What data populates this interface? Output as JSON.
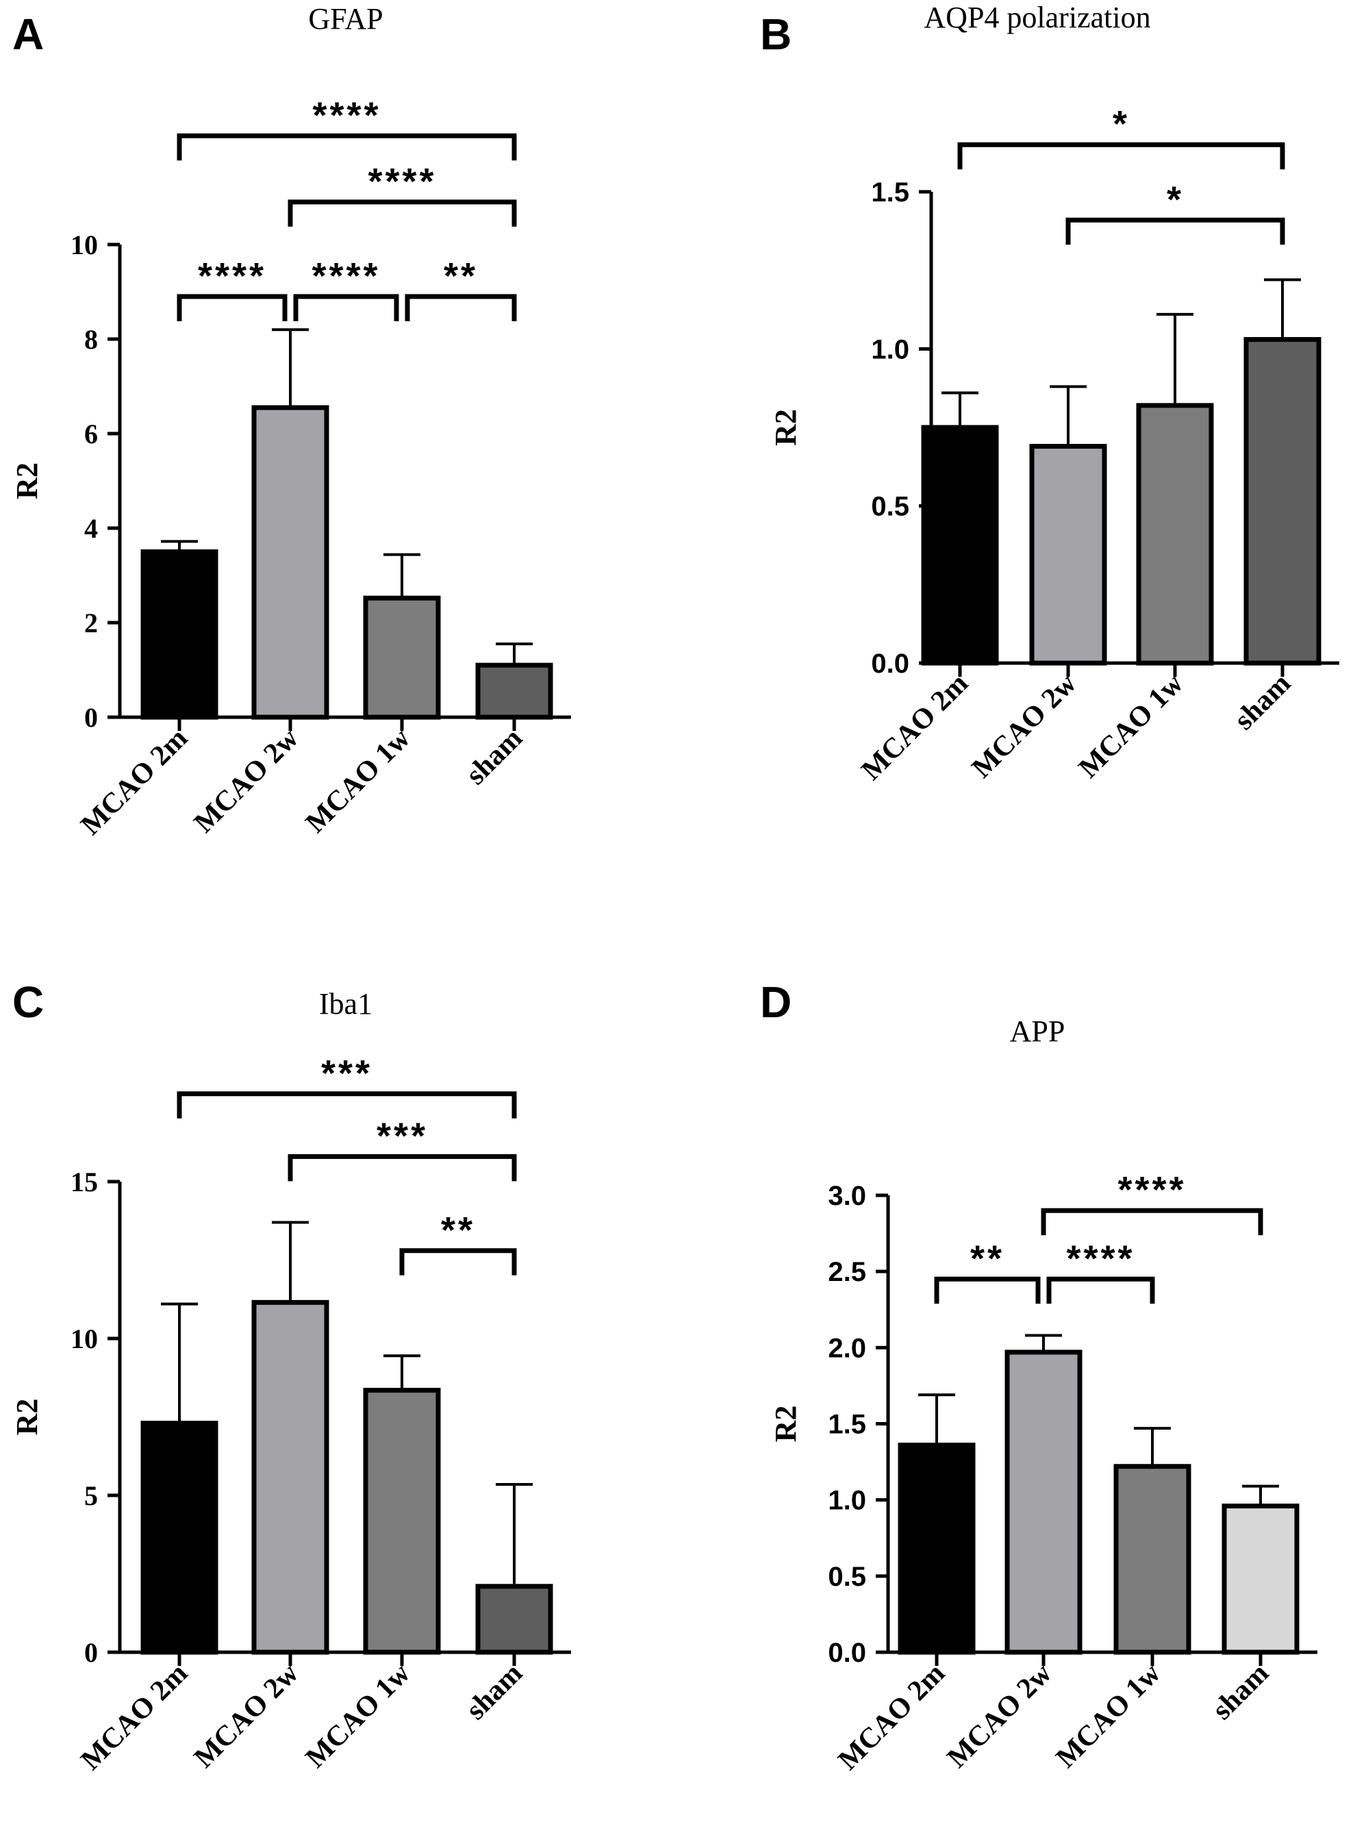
{
  "chart_data": [
    {
      "panel": "A",
      "type": "bar",
      "title": "GFAP",
      "ylabel": "R2",
      "xlabel": "",
      "ylim": [
        0,
        10
      ],
      "yticks": [
        0,
        2,
        4,
        6,
        8,
        10
      ],
      "ytick_labels": [
        "0",
        "2",
        "4",
        "6",
        "8",
        "10"
      ],
      "ytick_font": "serif",
      "categories": [
        "MCAO 2m",
        "MCAO 2w",
        "MCAO 1w",
        "sham"
      ],
      "values": [
        3.5,
        6.55,
        2.52,
        1.1
      ],
      "errors": [
        0.22,
        1.65,
        0.92,
        0.45
      ],
      "colors": [
        "#000000",
        "#a3a3a8",
        "#7d7d7d",
        "#5e5e5e"
      ],
      "comparisons": [
        {
          "from": 0,
          "to": 3,
          "label": "****",
          "y": 12.3
        },
        {
          "from": 1,
          "to": 3,
          "label": "****",
          "y": 10.9
        },
        {
          "from": 0,
          "to": 1,
          "label": "****",
          "y": 8.9
        },
        {
          "from": 1,
          "to": 2,
          "label": "****",
          "y": 8.9
        },
        {
          "from": 2,
          "to": 3,
          "label": "**",
          "y": 8.9
        }
      ]
    },
    {
      "panel": "B",
      "type": "bar",
      "title": "AQP4 polarization",
      "ylabel": "R2",
      "xlabel": "",
      "ylim": [
        0,
        1.5
      ],
      "yticks": [
        0,
        0.5,
        1,
        1.5
      ],
      "ytick_labels": [
        "0.0",
        "0.5",
        "1.0",
        "1.5"
      ],
      "ytick_font": "sans",
      "categories": [
        "MCAO 2m",
        "MCAO 2w",
        "MCAO 1w",
        "sham"
      ],
      "values": [
        0.75,
        0.69,
        0.82,
        1.03
      ],
      "errors": [
        0.11,
        0.19,
        0.29,
        0.19
      ],
      "colors": [
        "#000000",
        "#a3a3a8",
        "#7d7d7d",
        "#5e5e5e"
      ],
      "comparisons": [
        {
          "from": 0,
          "to": 3,
          "label": "*",
          "y": 1.65
        },
        {
          "from": 1,
          "to": 3,
          "label": "*",
          "y": 1.41
        }
      ]
    },
    {
      "panel": "C",
      "type": "bar",
      "title": "Iba1",
      "ylabel": "R2",
      "xlabel": "",
      "ylim": [
        0,
        15
      ],
      "yticks": [
        0,
        5,
        10,
        15
      ],
      "ytick_labels": [
        "0",
        "5",
        "10",
        "15"
      ],
      "ytick_font": "serif",
      "categories": [
        "MCAO 2m",
        "MCAO 2w",
        "MCAO 1w",
        "sham"
      ],
      "values": [
        7.3,
        11.15,
        8.35,
        2.1
      ],
      "errors": [
        3.8,
        2.55,
        1.1,
        3.25
      ],
      "colors": [
        "#000000",
        "#a3a3a8",
        "#7d7d7d",
        "#5e5e5e"
      ],
      "comparisons": [
        {
          "from": 0,
          "to": 3,
          "label": "***",
          "y": 17.8
        },
        {
          "from": 1,
          "to": 3,
          "label": "***",
          "y": 15.8
        },
        {
          "from": 2,
          "to": 3,
          "label": "**",
          "y": 12.8
        }
      ]
    },
    {
      "panel": "D",
      "type": "bar",
      "title": "APP",
      "ylabel": "R2",
      "xlabel": "",
      "ylim": [
        0,
        3
      ],
      "yticks": [
        0,
        0.5,
        1,
        1.5,
        2,
        2.5,
        3
      ],
      "ytick_labels": [
        "0.0",
        "0.5",
        "1.0",
        "1.5",
        "2.0",
        "2.5",
        "3.0"
      ],
      "ytick_font": "sans",
      "categories": [
        "MCAO 2m",
        "MCAO 2w",
        "MCAO 1w",
        "sham"
      ],
      "values": [
        1.36,
        1.97,
        1.22,
        0.96
      ],
      "errors": [
        0.33,
        0.11,
        0.25,
        0.13
      ],
      "colors": [
        "#000000",
        "#a3a3a8",
        "#7d7d7d",
        "#d7d7d7"
      ],
      "comparisons": [
        {
          "from": 1,
          "to": 3,
          "label": "****",
          "y": 2.9
        },
        {
          "from": 0,
          "to": 1,
          "label": "**",
          "y": 2.45
        },
        {
          "from": 1,
          "to": 2,
          "label": "****",
          "y": 2.45
        }
      ]
    }
  ]
}
